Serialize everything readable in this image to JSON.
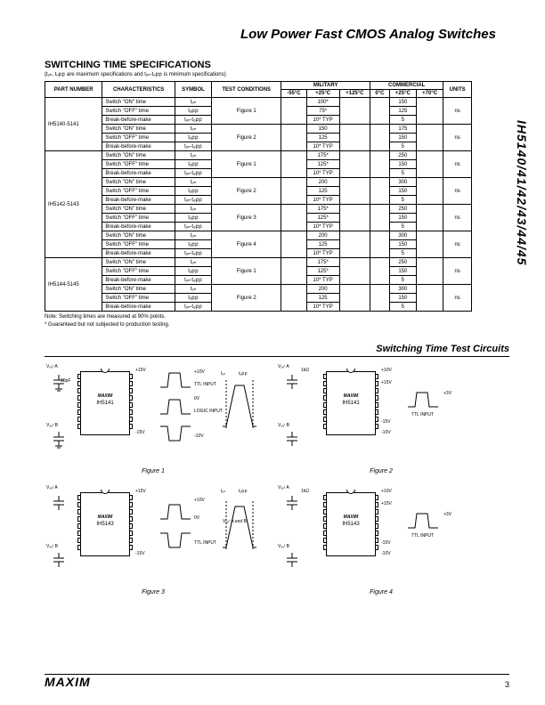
{
  "main_title": "Low Power Fast CMOS Analog Switches",
  "side_label": "IH5140/41/42/43/44/45",
  "section_title": "SWITCHING TIME SPECIFICATIONS",
  "section_sub": "(tₒₙ, tₒբբ are maximum specifications and tₒₙ-tₒբբ is minimum specifications)",
  "headers": {
    "part": "PART NUMBER",
    "char": "CHARACTERISTICS",
    "symbol": "SYMBOL",
    "test": "TEST CONDITIONS",
    "military": "MILITARY",
    "commercial": "COMMERCIAL",
    "units": "UNITS",
    "m55": "-55°C",
    "p25": "+25°C",
    "p125": "+125°C",
    "c0": "0°C",
    "c25": "+25°C",
    "c70": "+70°C"
  },
  "char_lines": {
    "on": "Switch \"ON\" time",
    "off": "Switch \"OFF\" time",
    "bbm": "Break-before-make"
  },
  "sym": {
    "ton": "tₒₙ",
    "toff": "tₒբբ",
    "diff": "tₒₙ-tₒբբ"
  },
  "figures": {
    "f1": "Figure 1",
    "f2": "Figure 2",
    "f3": "Figure 3",
    "f4": "Figure 4"
  },
  "rows": [
    {
      "part": "IH5140-5141",
      "blocks": [
        {
          "fig": "f1",
          "mil": [
            "100*",
            "75*",
            "10* TYP"
          ],
          "com": [
            "150",
            "125",
            "5"
          ],
          "units": "ns"
        },
        {
          "fig": "f2",
          "mil": [
            "150",
            "125",
            "10* TYP"
          ],
          "com": [
            "175",
            "150",
            "5"
          ],
          "units": "ns"
        }
      ]
    },
    {
      "part": "IH5142-5143",
      "blocks": [
        {
          "fig": "f1",
          "mil": [
            "175*",
            "125*",
            "10* TYP"
          ],
          "com": [
            "250",
            "150",
            "5"
          ],
          "units": "ns"
        },
        {
          "fig": "f2",
          "mil": [
            "200",
            "125",
            "10* TYP"
          ],
          "com": [
            "300",
            "150",
            "5"
          ],
          "units": "ns"
        },
        {
          "fig": "f3",
          "mil": [
            "175*",
            "125*",
            "10* TYP"
          ],
          "com": [
            "250",
            "150",
            "5"
          ],
          "units": "ns"
        },
        {
          "fig": "f4",
          "mil": [
            "200",
            "125",
            "10* TYP"
          ],
          "com": [
            "300",
            "150",
            "5"
          ],
          "units": "ns"
        }
      ]
    },
    {
      "part": "IH5144-5145",
      "blocks": [
        {
          "fig": "f1",
          "mil": [
            "175*",
            "125*",
            "10* TYP"
          ],
          "com": [
            "250",
            "150",
            "5"
          ],
          "units": "ns"
        },
        {
          "fig": "f2",
          "mil": [
            "200",
            "125",
            "10* TYP"
          ],
          "com": [
            "300",
            "150",
            "5"
          ],
          "units": "ns"
        }
      ]
    }
  ],
  "notes": {
    "n1": "Note: Switching times are measured at 90% points.",
    "n2": "* Guaranteed but not subjected to production testing."
  },
  "circuits_title": "Switching Time Test Circuits",
  "ic_brand": "MAXIM",
  "ic_parts": {
    "p1": "IH5141",
    "p2": "IH5141",
    "p3": "IH5143",
    "p4": "IH5143"
  },
  "fig_captions": {
    "f1": "Figure 1",
    "f2": "Figure 2",
    "f3": "Figure 3",
    "f4": "Figure 4"
  },
  "wave_labels": {
    "p15v": "+15V",
    "m15v": "-15V",
    "p10v": "+10V",
    "m10v": "-10V",
    "ov": "0V",
    "p3v": "+3V",
    "ttl": "TTL INPUT",
    "logic": "LOGIC INPUT",
    "vout_a": "Vₒᵤᵗ A",
    "vout_b": "Vₒᵤᵗ B",
    "vout_ab": "Vₒᵤᵗ A and B",
    "ton": "tₒₙ",
    "toff": "tₒբբ",
    "c10": "10pF",
    "r1k": "1kΩ"
  },
  "logo": "MAXIM",
  "page_number": "3",
  "colors": {
    "fg": "#000000",
    "bg": "#ffffff"
  }
}
